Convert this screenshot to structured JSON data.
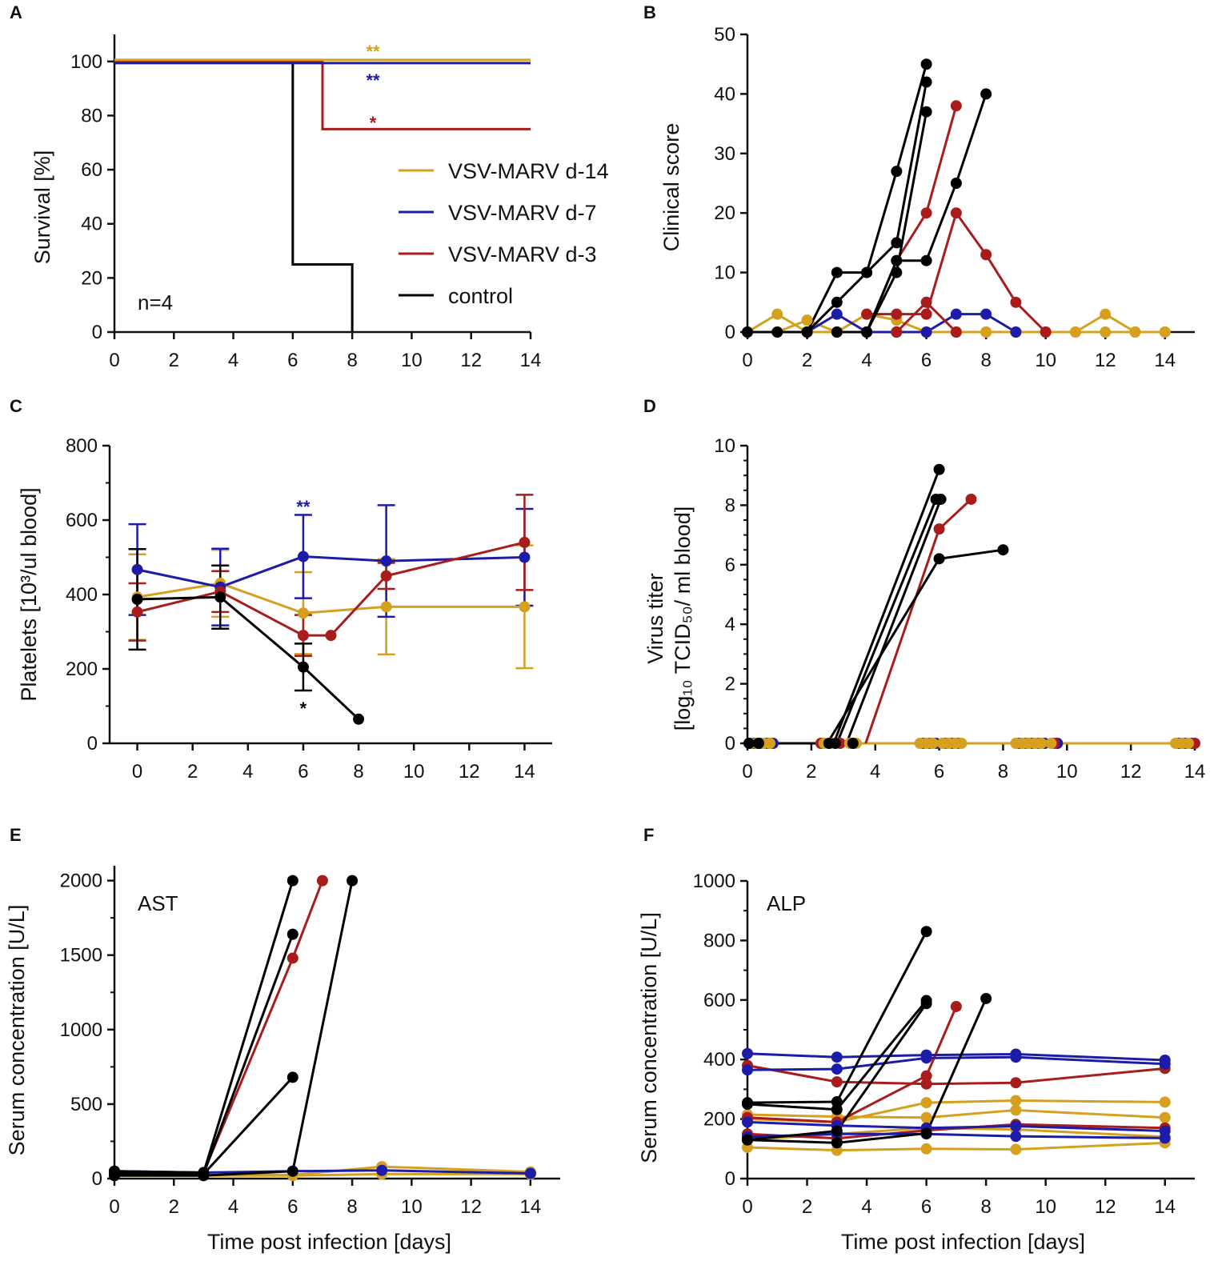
{
  "colors": {
    "d14": "#D4A01E",
    "d7": "#1C1CA8",
    "d3": "#A81C1C",
    "control": "#000000",
    "axis": "#111111"
  },
  "legend": {
    "d14": "VSV-MARV d-14",
    "d7": "VSV-MARV d-7",
    "d3": "VSV-MARV d-3",
    "control": "control"
  },
  "chart_data": [
    {
      "id": "A",
      "type": "line",
      "step": true,
      "panel_letter": "A",
      "title": "",
      "xlabel": "",
      "ylabel": "Survival [%]",
      "xlim": [
        0,
        14
      ],
      "ylim": [
        0,
        110
      ],
      "xticks": [
        0,
        2,
        4,
        6,
        8,
        10,
        12,
        14
      ],
      "yticks": [
        0,
        20,
        40,
        60,
        80,
        100
      ],
      "annotation": "n=4",
      "series": [
        {
          "group": "d14",
          "name": "VSV-MARV d-14",
          "x": [
            0,
            14
          ],
          "y": [
            100,
            100
          ],
          "significance": "**"
        },
        {
          "group": "d7",
          "name": "VSV-MARV d-7",
          "x": [
            0,
            14
          ],
          "y": [
            100,
            100
          ],
          "significance": "**"
        },
        {
          "group": "d3",
          "name": "VSV-MARV d-3",
          "x": [
            0,
            7,
            7,
            14
          ],
          "y": [
            100,
            100,
            75,
            75
          ],
          "significance": "*"
        },
        {
          "group": "control",
          "name": "control",
          "x": [
            0,
            6,
            6,
            8,
            8
          ],
          "y": [
            100,
            100,
            25,
            25,
            0
          ]
        }
      ]
    },
    {
      "id": "B",
      "type": "line",
      "panel_letter": "B",
      "xlabel": "",
      "ylabel": "Clinical score",
      "xlim": [
        0,
        15
      ],
      "ylim": [
        0,
        50
      ],
      "xticks": [
        0,
        2,
        4,
        6,
        8,
        10,
        12,
        14
      ],
      "yticks": [
        0,
        10,
        20,
        30,
        40,
        50
      ],
      "series": [
        {
          "group": "d14",
          "x": [
            0,
            1,
            2,
            3,
            4,
            5,
            6,
            7,
            8,
            9,
            10,
            11,
            12,
            13,
            14
          ],
          "y": [
            0,
            3,
            0,
            0,
            3,
            2,
            0,
            0,
            0,
            0,
            0,
            0,
            3,
            0,
            0
          ]
        },
        {
          "group": "d14",
          "x": [
            0,
            1,
            2,
            3,
            4,
            5,
            6,
            7,
            8,
            9,
            10,
            11,
            12,
            13,
            14
          ],
          "y": [
            0,
            0,
            2,
            0,
            0,
            0,
            0,
            0,
            0,
            0,
            0,
            0,
            0,
            0,
            0
          ]
        },
        {
          "group": "d7",
          "x": [
            2,
            3,
            4,
            5,
            6,
            7,
            8,
            9
          ],
          "y": [
            0,
            3,
            0,
            0,
            0,
            3,
            3,
            0
          ]
        },
        {
          "group": "d3",
          "x": [
            4,
            5,
            6,
            7,
            8,
            9,
            10
          ],
          "y": [
            3,
            3,
            3,
            20,
            13,
            5,
            0
          ]
        },
        {
          "group": "d3",
          "x": [
            4,
            5,
            6,
            7
          ],
          "y": [
            0,
            12,
            20,
            38
          ]
        },
        {
          "group": "d3",
          "x": [
            5,
            6,
            7
          ],
          "y": [
            0,
            5,
            0
          ]
        },
        {
          "group": "control",
          "x": [
            0,
            1,
            2,
            3,
            4,
            5,
            6
          ],
          "y": [
            0,
            0,
            0,
            10,
            10,
            27,
            45
          ]
        },
        {
          "group": "control",
          "x": [
            2,
            3,
            4,
            5,
            6
          ],
          "y": [
            0,
            5,
            10,
            15,
            42
          ]
        },
        {
          "group": "control",
          "x": [
            3,
            4,
            5,
            6
          ],
          "y": [
            0,
            0,
            10,
            37
          ]
        },
        {
          "group": "control",
          "x": [
            4,
            5,
            6,
            7,
            8
          ],
          "y": [
            0,
            12,
            12,
            25,
            40
          ]
        }
      ]
    },
    {
      "id": "C",
      "type": "line",
      "panel_letter": "C",
      "xlabel": "",
      "ylabel": "Platelets  [10³/ul blood]",
      "xlim": [
        -1,
        15
      ],
      "ylim": [
        0,
        800
      ],
      "xticks": [
        0,
        2,
        4,
        6,
        8,
        10,
        12,
        14
      ],
      "yticks": [
        0,
        200,
        400,
        600,
        800
      ],
      "series": [
        {
          "group": "d14",
          "x": [
            0,
            3,
            6,
            9,
            14
          ],
          "y": [
            393,
            430,
            350,
            367,
            367
          ],
          "err": [
            115,
            90,
            110,
            128,
            165
          ]
        },
        {
          "group": "d7",
          "x": [
            0,
            3,
            6,
            9,
            14
          ],
          "y": [
            467,
            420,
            502,
            490,
            500
          ],
          "err": [
            122,
            103,
            112,
            150,
            130
          ]
        },
        {
          "group": "d3",
          "x": [
            0,
            3,
            6,
            7,
            9,
            14
          ],
          "y": [
            353,
            408,
            290,
            290,
            450,
            540
          ],
          "err": [
            77,
            55,
            55,
            0,
            35,
            128
          ]
        },
        {
          "group": "control",
          "x": [
            0,
            3,
            6,
            8
          ],
          "y": [
            387,
            393,
            205,
            65
          ],
          "err": [
            135,
            85,
            63,
            0
          ]
        }
      ],
      "annotations": [
        {
          "group": "d7",
          "text": "**",
          "x": 6
        },
        {
          "group": "control",
          "text": "*",
          "x": 6
        }
      ]
    },
    {
      "id": "D",
      "type": "line",
      "panel_letter": "D",
      "xlabel": "",
      "ylabel_line1": "Virus titer",
      "ylabel_line2": "[log₁₀ TCID₅₀/ ml blood]",
      "xlim": [
        0,
        14
      ],
      "ylim": [
        0,
        10
      ],
      "xticks": [
        0,
        2,
        4,
        6,
        8,
        10,
        12,
        14
      ],
      "yticks": [
        0,
        2,
        4,
        6,
        8,
        10
      ],
      "series": [
        {
          "group": "control",
          "x": [
            0,
            3
          ],
          "y": [
            0,
            0
          ]
        },
        {
          "group": "d14",
          "x": [
            3.5,
            14
          ],
          "y": [
            0,
            0
          ]
        },
        {
          "group": "control",
          "x": [
            2.7,
            6
          ],
          "y": [
            0,
            9.2
          ]
        },
        {
          "group": "control",
          "x": [
            2.8,
            5.9
          ],
          "y": [
            0,
            8.2
          ]
        },
        {
          "group": "control",
          "x": [
            3.1,
            6.05
          ],
          "y": [
            0,
            8.2
          ]
        },
        {
          "group": "control",
          "x": [
            2.5,
            6,
            8
          ],
          "y": [
            0,
            6.2,
            6.5
          ]
        },
        {
          "group": "d3",
          "x": [
            3.7,
            6,
            7
          ],
          "y": [
            0,
            7.2,
            8.2
          ]
        }
      ],
      "zero_points": {
        "d14": [
          0.1,
          0.3,
          0.5,
          0.7,
          2.4,
          2.6,
          3.2,
          3.4,
          5.4,
          5.6,
          5.8,
          6.1,
          6.3,
          6.5,
          6.7,
          8.4,
          8.6,
          8.8,
          9.0,
          9.2,
          9.5,
          13.4,
          13.6,
          13.8
        ],
        "d7": [
          0.2,
          0.4,
          0.6,
          0.8,
          5.5,
          5.9,
          6.4,
          8.5,
          8.9,
          9.3,
          9.7,
          13.5,
          13.7,
          13.9
        ],
        "d3": [
          0.3,
          0.7,
          2.3,
          2.9,
          5.7,
          6.2,
          6.6,
          8.7,
          9.1,
          9.6,
          13.6,
          14.0
        ],
        "control": [
          0.05,
          0.35,
          2.55,
          2.75,
          3.3
        ]
      }
    },
    {
      "id": "E",
      "type": "line",
      "panel_letter": "E",
      "xlabel": "Time post infection [days]",
      "ylabel": "Serum concentration [U/L]",
      "annotation": "AST",
      "xlim": [
        0,
        15
      ],
      "ylim": [
        0,
        2100
      ],
      "xticks": [
        0,
        2,
        4,
        6,
        8,
        10,
        12,
        14
      ],
      "yticks": [
        0,
        500,
        1000,
        1500,
        2000
      ],
      "series": [
        {
          "group": "d14",
          "x": [
            0,
            3,
            6,
            9,
            14
          ],
          "y": [
            30,
            25,
            25,
            80,
            45
          ]
        },
        {
          "group": "d14",
          "x": [
            0,
            3,
            6,
            9,
            14
          ],
          "y": [
            20,
            20,
            20,
            30,
            30
          ]
        },
        {
          "group": "d7",
          "x": [
            0,
            3,
            6,
            9,
            14
          ],
          "y": [
            50,
            40,
            50,
            55,
            35
          ]
        },
        {
          "group": "d3",
          "x": [
            0,
            3,
            6,
            7
          ],
          "y": [
            40,
            40,
            1480,
            2000
          ]
        },
        {
          "group": "control",
          "x": [
            0,
            3,
            6
          ],
          "y": [
            50,
            40,
            2000
          ]
        },
        {
          "group": "control",
          "x": [
            0,
            3,
            6
          ],
          "y": [
            40,
            30,
            1640
          ]
        },
        {
          "group": "control",
          "x": [
            0,
            3,
            6
          ],
          "y": [
            30,
            30,
            680
          ]
        },
        {
          "group": "control",
          "x": [
            0,
            3,
            6,
            8
          ],
          "y": [
            20,
            20,
            50,
            2000
          ]
        }
      ]
    },
    {
      "id": "F",
      "type": "line",
      "panel_letter": "F",
      "xlabel": "Time post infection [days]",
      "ylabel": "Serum concentration [U/L]",
      "annotation": "ALP",
      "xlim": [
        0,
        15
      ],
      "ylim": [
        0,
        1000
      ],
      "xticks": [
        0,
        2,
        4,
        6,
        8,
        10,
        12,
        14
      ],
      "yticks": [
        0,
        200,
        400,
        600,
        800,
        1000
      ],
      "series": [
        {
          "group": "d7",
          "x": [
            0,
            3,
            6,
            9,
            14
          ],
          "y": [
            420,
            408,
            415,
            418,
            398
          ]
        },
        {
          "group": "d7",
          "x": [
            0,
            3,
            6,
            9,
            14
          ],
          "y": [
            365,
            368,
            405,
            408,
            385
          ]
        },
        {
          "group": "d7",
          "x": [
            0,
            3,
            6,
            9,
            14
          ],
          "y": [
            190,
            178,
            170,
            176,
            160
          ]
        },
        {
          "group": "d7",
          "x": [
            0,
            3,
            6,
            9,
            14
          ],
          "y": [
            140,
            150,
            150,
            142,
            136
          ]
        },
        {
          "group": "d3",
          "x": [
            0,
            3,
            6,
            9,
            14
          ],
          "y": [
            380,
            325,
            318,
            322,
            370
          ]
        },
        {
          "group": "d3",
          "x": [
            0,
            3,
            6,
            7
          ],
          "y": [
            205,
            190,
            345,
            578
          ]
        },
        {
          "group": "d3",
          "x": [
            0,
            3,
            6,
            9,
            14
          ],
          "y": [
            150,
            135,
            162,
            182,
            170
          ]
        },
        {
          "group": "d14",
          "x": [
            0,
            3,
            6,
            9,
            14
          ],
          "y": [
            215,
            208,
            205,
            230,
            205
          ]
        },
        {
          "group": "d14",
          "x": [
            0,
            3,
            6,
            9,
            14
          ],
          "y": [
            200,
            190,
            255,
            262,
            257
          ]
        },
        {
          "group": "d14",
          "x": [
            0,
            3,
            6,
            9,
            14
          ],
          "y": [
            130,
            150,
            170,
            165,
            140
          ]
        },
        {
          "group": "d14",
          "x": [
            0,
            3,
            6,
            9,
            14
          ],
          "y": [
            105,
            95,
            100,
            98,
            120
          ]
        },
        {
          "group": "control",
          "x": [
            0,
            3,
            6
          ],
          "y": [
            255,
            258,
            830
          ]
        },
        {
          "group": "control",
          "x": [
            0,
            3,
            6
          ],
          "y": [
            250,
            232,
            598
          ]
        },
        {
          "group": "control",
          "x": [
            0,
            3,
            6
          ],
          "y": [
            130,
            160,
            588
          ]
        },
        {
          "group": "control",
          "x": [
            0,
            3,
            6,
            8
          ],
          "y": [
            130,
            120,
            152,
            605
          ]
        }
      ]
    }
  ]
}
